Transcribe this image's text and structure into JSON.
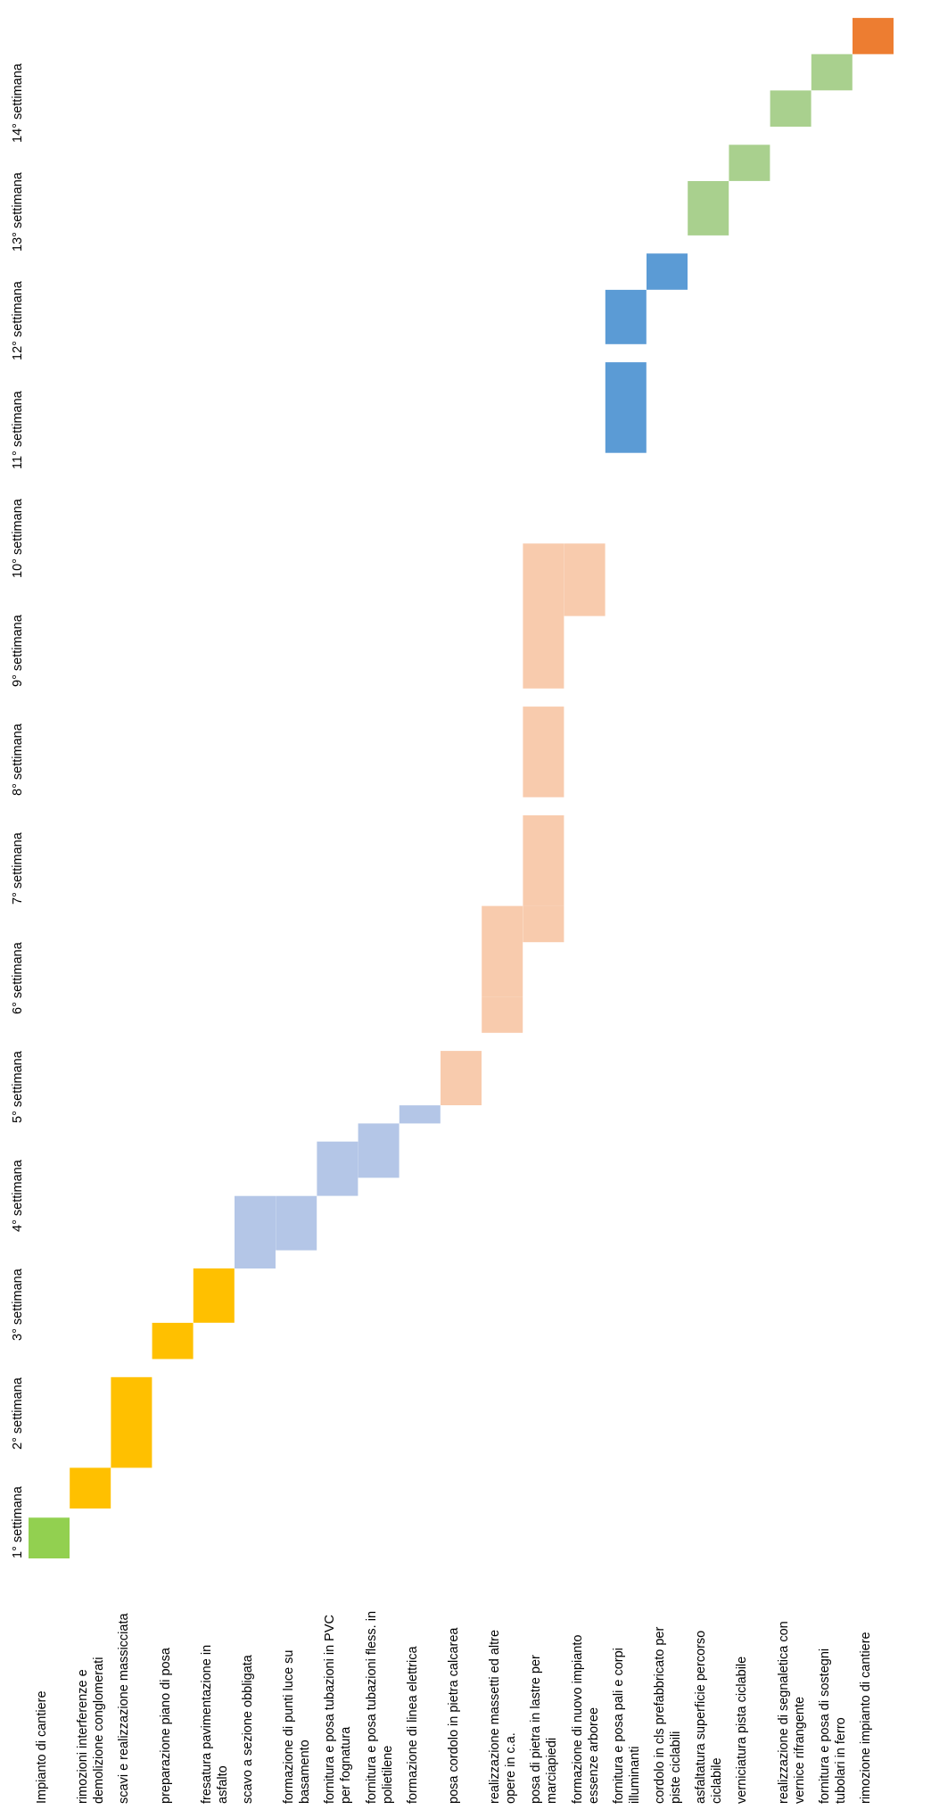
{
  "chart_data": {
    "type": "gantt",
    "title": "",
    "xlabel": "",
    "ylabel": "",
    "weeks": [
      "1° settimana",
      "2° settimana",
      "3° settimana",
      "4° settimana",
      "5° settimana",
      "6° settimana",
      "7° settimana",
      "8° settimana",
      "9° settimana",
      "10° settimana",
      "11° settimana",
      "12° settimana",
      "13° settimana",
      "14° settimana"
    ],
    "week_range": [
      0,
      14
    ],
    "tasks": [
      {
        "label": "Impianto di cantiere",
        "color": "#92D050",
        "bars": [
          [
            0.0,
            0.45
          ]
        ]
      },
      {
        "label": "rimozioni interferenze e demolizione conglomerati",
        "color": "#FFC000",
        "bars": [
          [
            0.55,
            1.0
          ]
        ]
      },
      {
        "label": "scavi e realizzazione massicciata",
        "color": "#FFC000",
        "bars": [
          [
            1.0,
            2.0
          ]
        ]
      },
      {
        "label": "preparazione piano di posa",
        "color": "#FFC000",
        "bars": [
          [
            2.2,
            2.6
          ]
        ]
      },
      {
        "label": "fresatura pavimentazione in asfalto",
        "color": "#FFC000",
        "bars": [
          [
            2.6,
            3.2
          ]
        ]
      },
      {
        "label": "scavo a sezione obbligata",
        "color": "#B4C6E7",
        "bars": [
          [
            3.2,
            4.0
          ]
        ]
      },
      {
        "label": "formazione di punti luce su basamento",
        "color": "#B4C6E7",
        "bars": [
          [
            3.4,
            4.0
          ]
        ]
      },
      {
        "label": "fornitura e posa tubazioni in PVC per fognatura",
        "color": "#B4C6E7",
        "bars": [
          [
            4.0,
            4.6
          ]
        ]
      },
      {
        "label": "fornitura e posa tubazioni fless. in polietilene",
        "color": "#B4C6E7",
        "bars": [
          [
            4.2,
            4.8
          ]
        ]
      },
      {
        "label": "formazione di linea elettrica",
        "color": "#B4C6E7",
        "bars": [
          [
            4.8,
            5.0
          ]
        ]
      },
      {
        "label": "posa cordolo in pietra calcarea",
        "color": "#F8CBAD",
        "bars": [
          [
            5.0,
            5.6
          ]
        ]
      },
      {
        "label": "realizzazione massetti ed altre opere in c.a.",
        "color": "#F8CBAD",
        "bars": [
          [
            5.8,
            6.2
          ],
          [
            6.2,
            7.2
          ]
        ]
      },
      {
        "label": "posa di pietra in lastre per marciapiedi",
        "color": "#F8CBAD",
        "bars": [
          [
            6.8,
            7.2
          ],
          [
            7.2,
            8.2
          ],
          [
            8.4,
            9.4
          ],
          [
            9.6,
            11.2
          ]
        ]
      },
      {
        "label": "formazione di nuovo impianto essenze arboree",
        "color": "#F8CBAD",
        "bars": [
          [
            10.4,
            11.2
          ]
        ]
      },
      {
        "label": "fornitura e posa pali e corpi illuminanti",
        "color": "#5B9BD5",
        "bars": [
          [
            12.2,
            13.2
          ],
          [
            13.4,
            14.0
          ]
        ]
      },
      {
        "label": "cordolo in cls prefabbricato per piste ciclabili",
        "color": "#5B9BD5",
        "bars": [
          [
            14.0,
            14.4
          ]
        ]
      },
      {
        "label": "asfaltatura superficie percorso ciclabile",
        "color": "#A9D08E",
        "bars": [
          [
            14.6,
            15.2
          ]
        ]
      },
      {
        "label": "verniciatura pista ciclabile",
        "color": "#A9D08E",
        "bars": [
          [
            15.2,
            15.6
          ]
        ]
      },
      {
        "label": "realizzazione di segnaletica con vernice rifrangente",
        "color": "#A9D08E",
        "bars": [
          [
            15.8,
            16.2
          ]
        ]
      },
      {
        "label": "fornitura e posa di sostegni tubolari in ferro",
        "color": "#A9D08E",
        "bars": [
          [
            16.2,
            16.6
          ]
        ]
      },
      {
        "label": "rimozione impianto di cantiere",
        "color": "#ED7D31",
        "bars": [
          [
            16.6,
            17.0
          ]
        ]
      }
    ]
  }
}
